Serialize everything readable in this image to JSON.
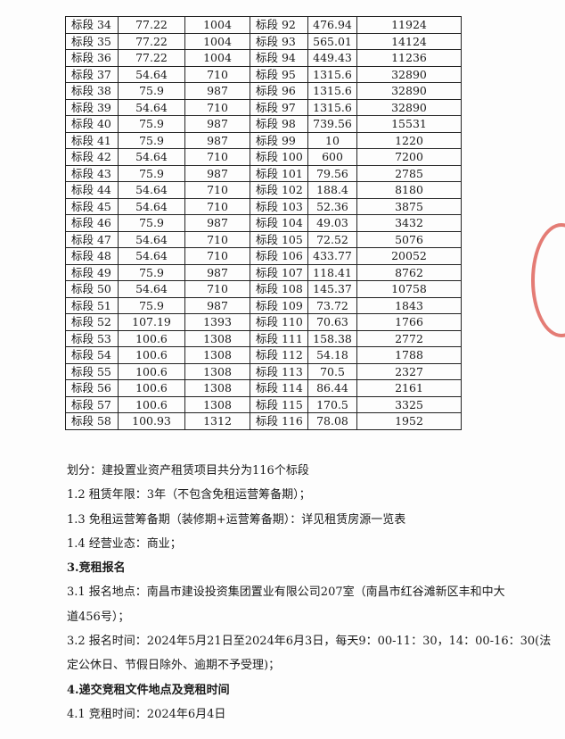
{
  "table": {
    "rows": [
      [
        "标段 34",
        "77.22",
        "1004",
        "标段 92",
        "476.94",
        "11924"
      ],
      [
        "标段 35",
        "77.22",
        "1004",
        "标段 93",
        "565.01",
        "14124"
      ],
      [
        "标段 36",
        "77.22",
        "1004",
        "标段 94",
        "449.43",
        "11236"
      ],
      [
        "标段 37",
        "54.64",
        "710",
        "标段 95",
        "1315.6",
        "32890"
      ],
      [
        "标段 38",
        "75.9",
        "987",
        "标段 96",
        "1315.6",
        "32890"
      ],
      [
        "标段 39",
        "54.64",
        "710",
        "标段 97",
        "1315.6",
        "32890"
      ],
      [
        "标段 40",
        "75.9",
        "987",
        "标段 98",
        "739.56",
        "15531"
      ],
      [
        "标段 41",
        "75.9",
        "987",
        "标段 99",
        "10",
        "1220"
      ],
      [
        "标段 42",
        "54.64",
        "710",
        "标段 100",
        "600",
        "7200"
      ],
      [
        "标段 43",
        "75.9",
        "987",
        "标段 101",
        "79.56",
        "2785"
      ],
      [
        "标段 44",
        "54.64",
        "710",
        "标段 102",
        "188.4",
        "8180"
      ],
      [
        "标段 45",
        "54.64",
        "710",
        "标段 103",
        "52.36",
        "3875"
      ],
      [
        "标段 46",
        "75.9",
        "987",
        "标段 104",
        "49.03",
        "3432"
      ],
      [
        "标段 47",
        "54.64",
        "710",
        "标段 105",
        "72.52",
        "5076"
      ],
      [
        "标段 48",
        "54.64",
        "710",
        "标段 106",
        "433.77",
        "20052"
      ],
      [
        "标段 49",
        "75.9",
        "987",
        "标段 107",
        "118.41",
        "8762"
      ],
      [
        "标段 50",
        "54.64",
        "710",
        "标段 108",
        "145.37",
        "10758"
      ],
      [
        "标段 51",
        "75.9",
        "987",
        "标段 109",
        "73.72",
        "1843"
      ],
      [
        "标段 52",
        "107.19",
        "1393",
        "标段 110",
        "70.63",
        "1766"
      ],
      [
        "标段 53",
        "100.6",
        "1308",
        "标段 111",
        "158.38",
        "2772"
      ],
      [
        "标段 54",
        "100.6",
        "1308",
        "标段 112",
        "54.18",
        "1788"
      ],
      [
        "标段 55",
        "100.6",
        "1308",
        "标段 113",
        "70.5",
        "2327"
      ],
      [
        "标段 56",
        "100.6",
        "1308",
        "标段 114",
        "86.44",
        "2161"
      ],
      [
        "标段 57",
        "100.6",
        "1308",
        "标段 115",
        "170.5",
        "3325"
      ],
      [
        "标段 58",
        "100.93",
        "1312",
        "标段 116",
        "78.08",
        "1952"
      ]
    ]
  },
  "text_lines": [
    {
      "text": "划分：建投置业资产租赁项目共分为116个标段",
      "bold": false
    },
    {
      "text": "1.2  租赁年限：3年（不包含免租运营筹备期）；",
      "bold": false
    },
    {
      "text": "1.3  免租运营筹备期（装修期+运营筹备期）：详见租赁房源一览表",
      "bold": false
    },
    {
      "text": "1.4  经营业态：商业；",
      "bold": false
    },
    {
      "text": "3.竞租报名",
      "bold": true
    },
    {
      "text": "3.1  报名地点：南昌市建设投资集团置业有限公司207室（南昌市红谷滩新区丰和中大",
      "bold": false
    },
    {
      "text": "道456号）；",
      "bold": false
    },
    {
      "text": "3.2  报名时间：2024年5月21日至2024年6月3日，每天9：00-11：30，14：00-16：30(法",
      "bold": false
    },
    {
      "text": "定公休日、节假日除外、逾期不予受理)；",
      "bold": false
    },
    {
      "text": "4.递交竞租文件地点及竞租时间",
      "bold": true
    },
    {
      "text": "4.1  竞租时间：2024年6月4日",
      "bold": false
    }
  ],
  "colors": {
    "stamp": "#d9443b"
  }
}
